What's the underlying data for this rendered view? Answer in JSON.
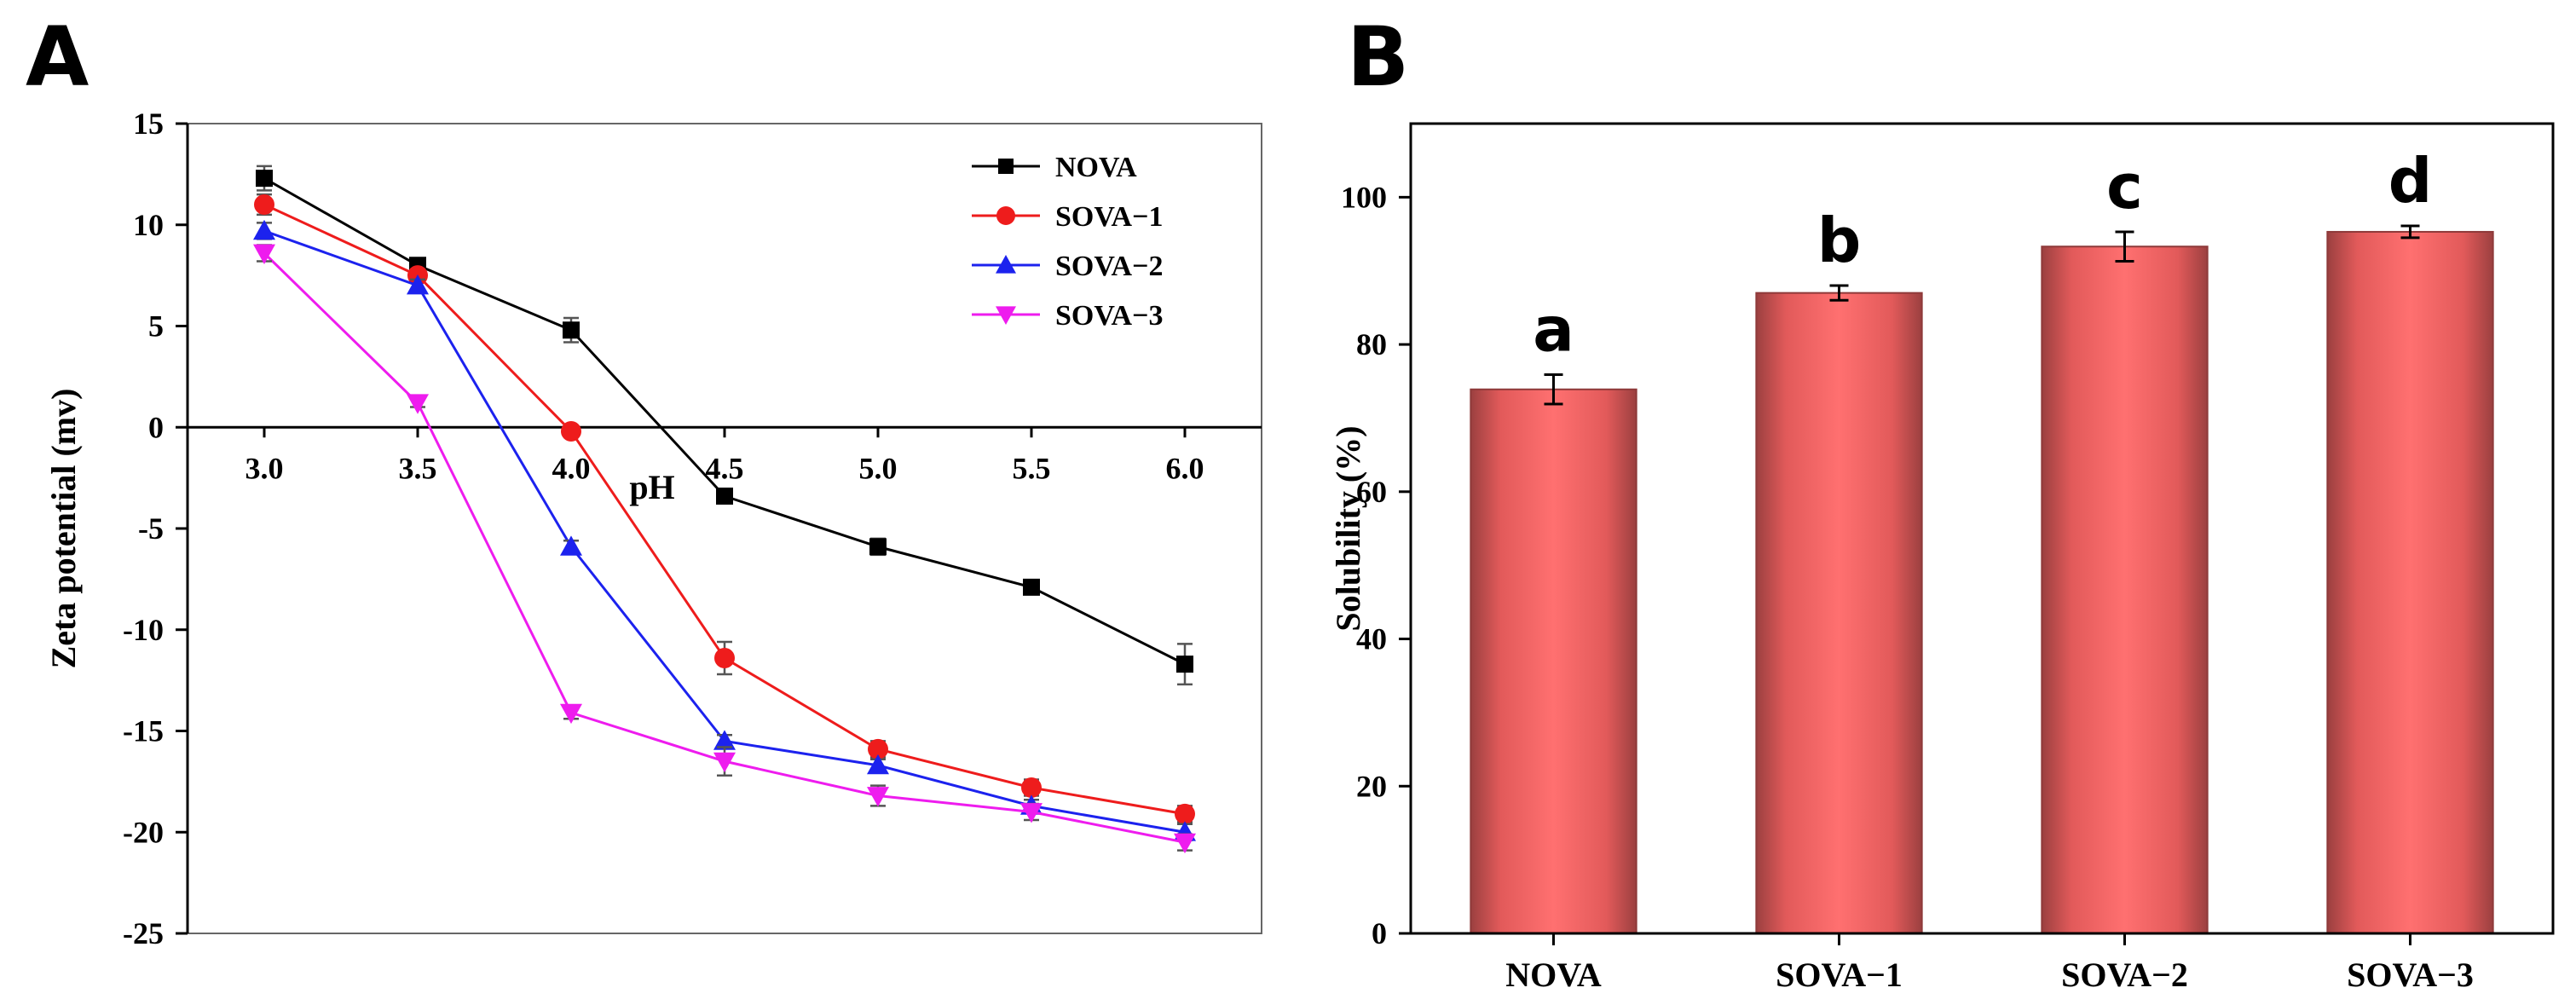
{
  "panels": {
    "left_letter": "A",
    "right_letter": "B"
  },
  "chart_data": [
    {
      "type": "line",
      "title": "",
      "xlabel": "pH",
      "ylabel": "Zeta potential (mv)",
      "x": [
        3.0,
        3.5,
        4.0,
        4.5,
        5.0,
        5.5,
        6.0
      ],
      "x_tick_labels": [
        "3.0",
        "3.5",
        "4.0",
        "4.5",
        "5.0",
        "5.5",
        "6.0"
      ],
      "xlim": [
        2.75,
        6.25
      ],
      "ylim": [
        -25,
        15
      ],
      "y_ticks": [
        15,
        10,
        5,
        0,
        -5,
        -10,
        -15,
        -20,
        -25
      ],
      "y_tick_labels": [
        "15",
        "10",
        "5",
        "0",
        "-5",
        "-10",
        "-15",
        "-20",
        "-25"
      ],
      "legend_position": "top-right",
      "series": [
        {
          "name": "NOVA",
          "color": "#000000",
          "marker": "square",
          "values": [
            12.3,
            8.0,
            4.8,
            -3.4,
            -5.9,
            -7.9,
            -11.7
          ],
          "errors": [
            0.6,
            0.3,
            0.6,
            0.3,
            0.4,
            0.3,
            1.0
          ]
        },
        {
          "name": "SOVA−1",
          "color": "#ee1c1c",
          "marker": "circle",
          "values": [
            11.0,
            7.5,
            -0.2,
            -11.4,
            -15.9,
            -17.8,
            -19.1
          ],
          "errors": [
            0.5,
            0.3,
            0.2,
            0.8,
            0.4,
            0.4,
            0.4
          ]
        },
        {
          "name": "SOVA−2",
          "color": "#1c22ee",
          "marker": "triangle-up",
          "values": [
            9.7,
            7.0,
            -5.9,
            -15.5,
            -16.7,
            -18.7,
            -20.0
          ],
          "errors": [
            0.4,
            0.3,
            0.3,
            0.3,
            0.3,
            0.3,
            0.4
          ]
        },
        {
          "name": "SOVA−3",
          "color": "#ee1cee",
          "marker": "triangle-down",
          "values": [
            8.6,
            1.2,
            -14.1,
            -16.5,
            -18.2,
            -19.0,
            -20.5
          ],
          "errors": [
            0.4,
            0.2,
            0.3,
            0.7,
            0.5,
            0.4,
            0.4
          ]
        }
      ]
    },
    {
      "type": "bar",
      "title": "",
      "xlabel": "",
      "ylabel": "Solubility (%)",
      "categories": [
        "NOVA",
        "SOVA−1",
        "SOVA−2",
        "SOVA−3"
      ],
      "values": [
        73.9,
        87.0,
        93.3,
        95.3
      ],
      "errors": [
        2.0,
        1.0,
        2.0,
        0.8
      ],
      "letters": [
        "a",
        "b",
        "c",
        "d"
      ],
      "ylim": [
        0,
        110
      ],
      "y_ticks": [
        0,
        20,
        40,
        60,
        80,
        100
      ],
      "y_tick_labels": [
        "0",
        "20",
        "40",
        "60",
        "80",
        "100"
      ],
      "bar_color": "#ff6a6a",
      "bar_edge_color": "#8e3a3a"
    }
  ]
}
